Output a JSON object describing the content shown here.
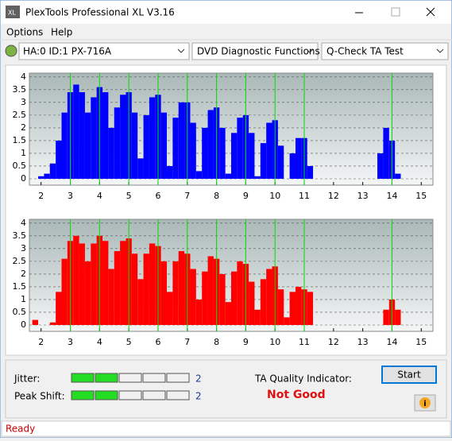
{
  "window": {
    "title": "PlexTools Professional XL V3.16"
  },
  "menu": [
    "Options",
    "Help"
  ],
  "toolbar": {
    "drive": "HA:0 ID:1  PX-716A",
    "function": "DVD Diagnostic Functions",
    "test": "Q-Check TA Test"
  },
  "chart_data": [
    {
      "type": "bar",
      "color": "#0000ff",
      "x": [
        1.8,
        2.0,
        2.2,
        2.4,
        2.6,
        2.8,
        3.0,
        3.2,
        3.4,
        3.6,
        3.8,
        4.0,
        4.2,
        4.4,
        4.6,
        4.8,
        5.0,
        5.2,
        5.4,
        5.6,
        5.8,
        6.0,
        6.2,
        6.4,
        6.6,
        6.8,
        7.0,
        7.2,
        7.4,
        7.6,
        7.8,
        8.0,
        8.2,
        8.4,
        8.6,
        8.8,
        9.0,
        9.2,
        9.4,
        9.6,
        9.8,
        10.0,
        10.2,
        10.4,
        10.6,
        10.8,
        11.0,
        11.2,
        11.4,
        11.6,
        11.8,
        12.0,
        12.2,
        12.4,
        12.6,
        12.8,
        13.0,
        13.2,
        13.4,
        13.6,
        13.8,
        14.0,
        14.2,
        14.4,
        14.6
      ],
      "values": [
        0,
        0.1,
        0.2,
        0.6,
        1.5,
        2.6,
        3.4,
        3.7,
        3.4,
        2.6,
        3.2,
        3.6,
        3.4,
        2.0,
        2.8,
        3.3,
        3.4,
        2.6,
        0.8,
        2.5,
        3.2,
        3.3,
        2.6,
        0.5,
        2.4,
        3.0,
        3.0,
        2.2,
        0.3,
        2.0,
        2.7,
        2.8,
        2.0,
        0.2,
        1.8,
        2.4,
        2.5,
        1.8,
        0.1,
        1.4,
        2.2,
        2.3,
        1.3,
        0,
        1.0,
        1.6,
        1.6,
        0.5,
        0,
        0,
        0,
        0,
        0,
        0,
        0,
        0,
        0,
        0,
        0,
        1.0,
        2.0,
        1.5,
        0.2,
        0,
        0
      ],
      "xlim": [
        1.6,
        15.4
      ],
      "xticks": [
        2,
        3,
        4,
        5,
        6,
        7,
        8,
        9,
        10,
        11,
        12,
        13,
        14,
        15
      ],
      "ylim": [
        -0.25,
        4.15
      ],
      "yticks": [
        0,
        0.5,
        1,
        1.5,
        2,
        2.5,
        3,
        3.5,
        4
      ],
      "markers": [
        3,
        4,
        5,
        6,
        7,
        8,
        9,
        10,
        11,
        14
      ],
      "marker_color": "#00dd00",
      "grid": true
    },
    {
      "type": "bar",
      "color": "#ff0000",
      "x": [
        1.8,
        2.0,
        2.2,
        2.4,
        2.6,
        2.8,
        3.0,
        3.2,
        3.4,
        3.6,
        3.8,
        4.0,
        4.2,
        4.4,
        4.6,
        4.8,
        5.0,
        5.2,
        5.4,
        5.6,
        5.8,
        6.0,
        6.2,
        6.4,
        6.6,
        6.8,
        7.0,
        7.2,
        7.4,
        7.6,
        7.8,
        8.0,
        8.2,
        8.4,
        8.6,
        8.8,
        9.0,
        9.2,
        9.4,
        9.6,
        9.8,
        10.0,
        10.2,
        10.4,
        10.6,
        10.8,
        11.0,
        11.2,
        11.4,
        11.6,
        11.8,
        12.0,
        12.2,
        12.4,
        12.6,
        12.8,
        13.0,
        13.2,
        13.4,
        13.6,
        13.8,
        14.0,
        14.2,
        14.4,
        14.6
      ],
      "values": [
        0.2,
        0,
        0,
        0.1,
        1.3,
        2.6,
        3.3,
        3.5,
        3.2,
        2.5,
        3.2,
        3.5,
        3.3,
        2.2,
        2.9,
        3.3,
        3.4,
        2.8,
        1.8,
        2.8,
        3.2,
        3.1,
        2.5,
        1.3,
        2.5,
        2.9,
        2.8,
        2.2,
        1.0,
        2.1,
        2.7,
        2.6,
        2.0,
        0.9,
        2.1,
        2.5,
        2.4,
        1.7,
        0.6,
        1.8,
        2.2,
        2.3,
        1.4,
        0.3,
        1.3,
        1.5,
        1.4,
        1.3,
        0,
        0,
        0,
        0,
        0,
        0,
        0,
        0,
        0,
        0,
        0,
        0,
        0.6,
        1.0,
        0.6,
        0,
        0
      ],
      "xlim": [
        1.6,
        15.4
      ],
      "xticks": [
        2,
        3,
        4,
        5,
        6,
        7,
        8,
        9,
        10,
        11,
        12,
        13,
        14,
        15
      ],
      "ylim": [
        -0.25,
        4.15
      ],
      "yticks": [
        0,
        0.5,
        1,
        1.5,
        2,
        2.5,
        3,
        3.5,
        4
      ],
      "markers": [
        3,
        4,
        5,
        6,
        7,
        8,
        9,
        10,
        11,
        14
      ],
      "marker_color": "#00dd00",
      "grid": true
    }
  ],
  "results": {
    "jitter": {
      "label": "Jitter:",
      "value": 2
    },
    "peak_shift": {
      "label": "Peak Shift:",
      "value": 2
    },
    "ta_label": "TA Quality Indicator:",
    "ta_value": "Not Good",
    "start": "Start"
  },
  "status": "Ready"
}
